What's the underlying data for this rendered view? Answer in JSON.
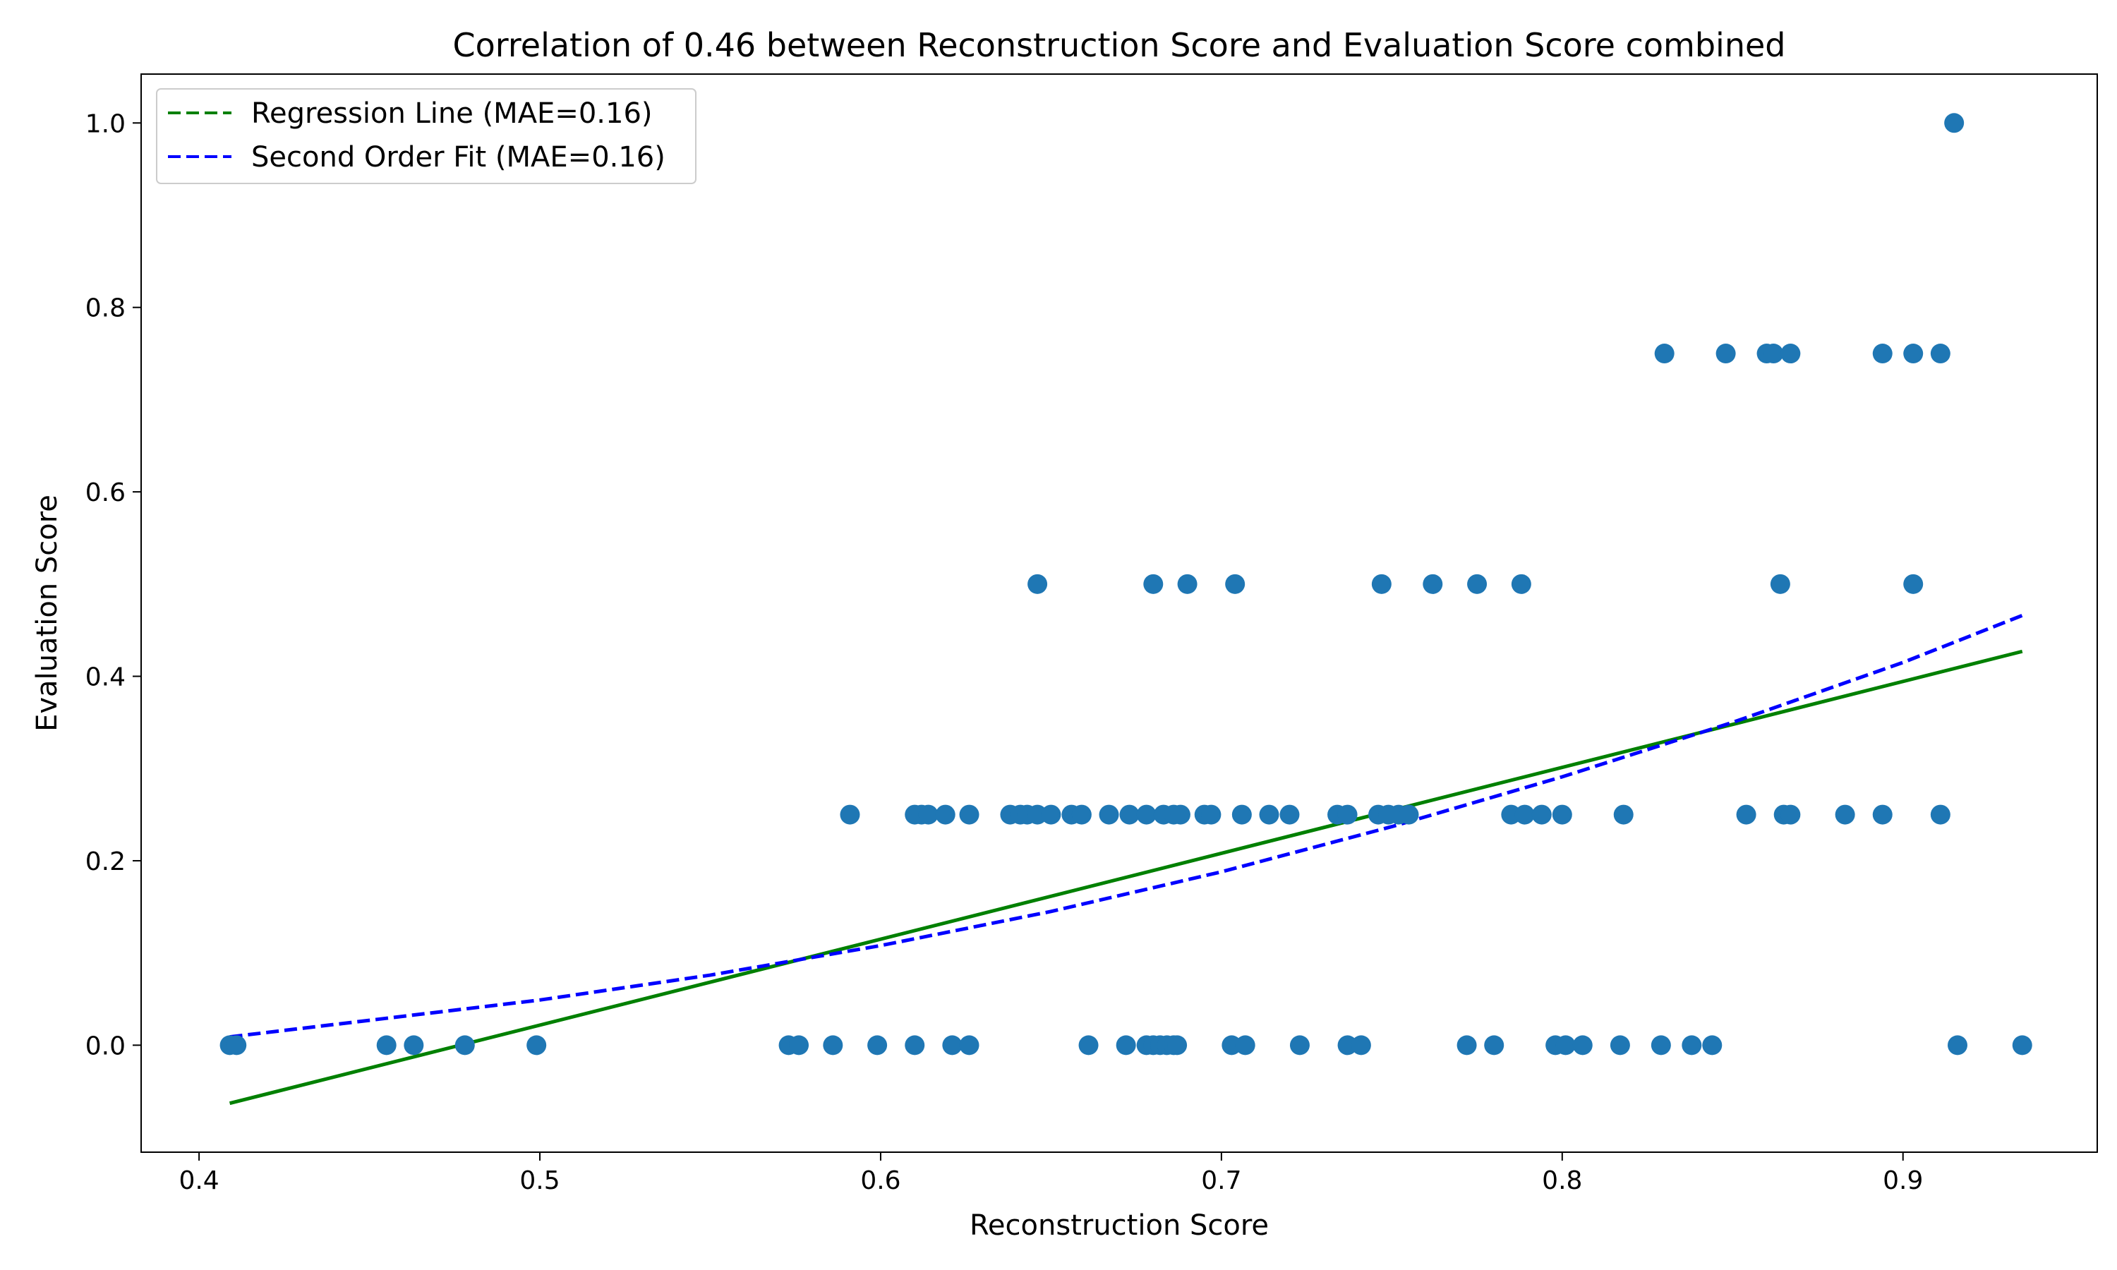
{
  "chart_data": {
    "type": "scatter",
    "title": "Correlation of 0.46 between Reconstruction Score and Evaluation Score combined",
    "xlabel": "Reconstruction Score",
    "ylabel": "Evaluation Score",
    "xlim": [
      0.383,
      0.957
    ],
    "ylim": [
      -0.116,
      1.053
    ],
    "xticks": [
      "0.4",
      "0.5",
      "0.6",
      "0.7",
      "0.8",
      "0.9"
    ],
    "yticks": [
      "0.0",
      "0.2",
      "0.4",
      "0.6",
      "0.8",
      "1.0"
    ],
    "grid": false,
    "legend_position": "top-left",
    "colors": {
      "points": "#1f77b4",
      "regression": "#008000",
      "second_order": "#0000ff"
    },
    "legend": [
      {
        "label": "Regression Line (MAE=0.16)",
        "color": "#008000"
      },
      {
        "label": "Second Order Fit (MAE=0.16)",
        "color": "#0000ff"
      }
    ],
    "series": [
      {
        "type": "scatter",
        "x": [
          0.409,
          0.411,
          0.455,
          0.463,
          0.478,
          0.499,
          0.573,
          0.576,
          0.586,
          0.599,
          0.61,
          0.621,
          0.626,
          0.661,
          0.672,
          0.678,
          0.68,
          0.682,
          0.684,
          0.686,
          0.687,
          0.703,
          0.707,
          0.723,
          0.737,
          0.741,
          0.772,
          0.78,
          0.798,
          0.801,
          0.806,
          0.817,
          0.829,
          0.838,
          0.844,
          0.916,
          0.935,
          0.591,
          0.61,
          0.612,
          0.614,
          0.619,
          0.626,
          0.638,
          0.641,
          0.643,
          0.646,
          0.65,
          0.656,
          0.659,
          0.667,
          0.673,
          0.678,
          0.683,
          0.686,
          0.688,
          0.695,
          0.697,
          0.706,
          0.714,
          0.72,
          0.734,
          0.737,
          0.746,
          0.749,
          0.752,
          0.755,
          0.785,
          0.789,
          0.794,
          0.8,
          0.818,
          0.854,
          0.865,
          0.867,
          0.883,
          0.894,
          0.911,
          0.646,
          0.68,
          0.69,
          0.704,
          0.747,
          0.762,
          0.775,
          0.788,
          0.864,
          0.903,
          0.83,
          0.848,
          0.86,
          0.862,
          0.867,
          0.894,
          0.903,
          0.911,
          0.915
        ],
        "y": [
          0.0,
          0.0,
          0.0,
          0.0,
          0.0,
          0.0,
          0.0,
          0.0,
          0.0,
          0.0,
          0.0,
          0.0,
          0.0,
          0.0,
          0.0,
          0.0,
          0.0,
          0.0,
          0.0,
          0.0,
          0.0,
          0.0,
          0.0,
          0.0,
          0.0,
          0.0,
          0.0,
          0.0,
          0.0,
          0.0,
          0.0,
          0.0,
          0.0,
          0.0,
          0.0,
          0.0,
          0.0,
          0.25,
          0.25,
          0.25,
          0.25,
          0.25,
          0.25,
          0.25,
          0.25,
          0.25,
          0.25,
          0.25,
          0.25,
          0.25,
          0.25,
          0.25,
          0.25,
          0.25,
          0.25,
          0.25,
          0.25,
          0.25,
          0.25,
          0.25,
          0.25,
          0.25,
          0.25,
          0.25,
          0.25,
          0.25,
          0.25,
          0.25,
          0.25,
          0.25,
          0.25,
          0.25,
          0.25,
          0.25,
          0.25,
          0.25,
          0.25,
          0.25,
          0.5,
          0.5,
          0.5,
          0.5,
          0.5,
          0.5,
          0.5,
          0.5,
          0.5,
          0.5,
          0.75,
          0.75,
          0.75,
          0.75,
          0.75,
          0.75,
          0.75,
          0.75,
          1.0
        ]
      },
      {
        "name": "Regression Line (MAE=0.16)",
        "type": "line",
        "style": "solid",
        "x": [
          0.409,
          0.935
        ],
        "y": [
          -0.063,
          0.427
        ]
      },
      {
        "name": "Second Order Fit (MAE=0.16)",
        "type": "line",
        "style": "dashed",
        "x": [
          0.409,
          0.45,
          0.5,
          0.55,
          0.6,
          0.65,
          0.7,
          0.75,
          0.8,
          0.85,
          0.9,
          0.935
        ],
        "y": [
          0.009,
          0.027,
          0.049,
          0.076,
          0.108,
          0.145,
          0.188,
          0.237,
          0.291,
          0.35,
          0.415,
          0.466
        ]
      }
    ]
  }
}
